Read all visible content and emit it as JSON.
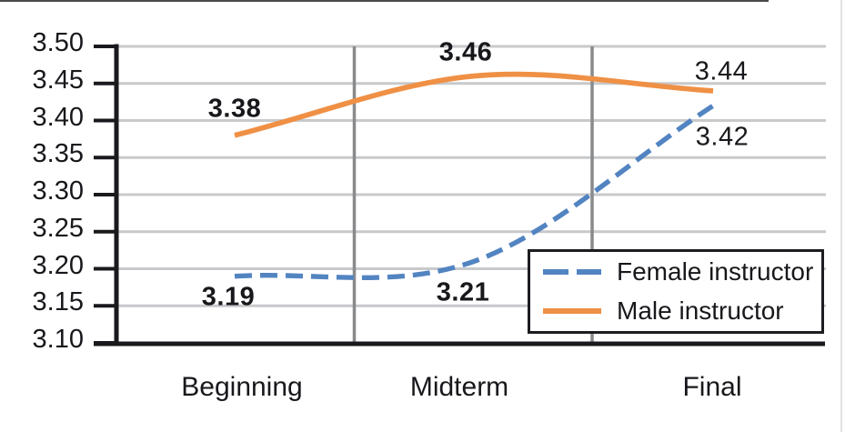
{
  "chart_data": {
    "type": "line",
    "title": "",
    "xlabel": "",
    "ylabel": "",
    "categories": [
      "Beginning",
      "Midterm",
      "Final"
    ],
    "series": [
      {
        "name": "Female instructor",
        "values": [
          3.19,
          3.21,
          3.42
        ],
        "labels": [
          "3.19",
          "3.21",
          "3.42"
        ],
        "color": "#5284c1",
        "line_style": "dashed"
      },
      {
        "name": "Male instructor",
        "values": [
          3.38,
          3.46,
          3.44
        ],
        "labels": [
          "3.38",
          "3.46",
          "3.44"
        ],
        "color": "#ef9045",
        "line_style": "solid"
      }
    ],
    "ylim": [
      3.1,
      3.5
    ],
    "ytick_step": 0.05,
    "y_tick_labels": [
      "3.50",
      "3.45",
      "3.40",
      "3.35",
      "3.30",
      "3.25",
      "3.20",
      "3.15",
      "3.10"
    ],
    "grid": "horizontal gridlines + vertical category separators",
    "smoothed_lines": true,
    "legend_position": "inside bottom-right, boxed"
  },
  "colors": {
    "gridline": "#c8c9cb",
    "separator": "#898a8c",
    "axis": "#1a1a1e",
    "text": "#18181c",
    "legend_border": "#1d1d21",
    "background": "#ffffff"
  }
}
